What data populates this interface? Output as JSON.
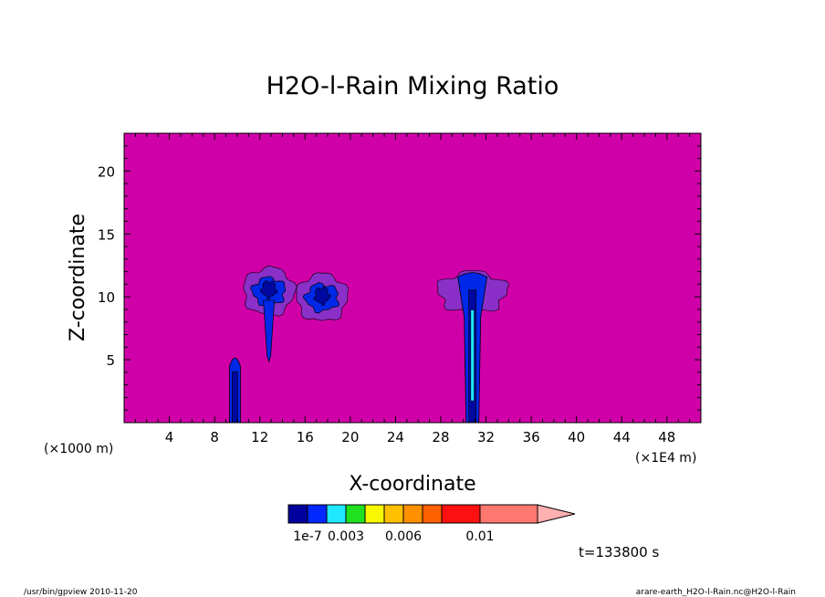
{
  "chart_data": {
    "type": "heatmap",
    "title": "H2O-l-Rain Mixing Ratio",
    "xlabel": "X-coordinate",
    "ylabel": "Z-coordinate",
    "x_ticks": [
      "4",
      "8",
      "12",
      "16",
      "20",
      "24",
      "28",
      "32",
      "36",
      "40",
      "44",
      "48"
    ],
    "y_ticks": [
      "5",
      "10",
      "15",
      "20"
    ],
    "x_unit_left": "(×1000 m)",
    "x_unit_right": "(×1E4 m)",
    "xlim": [
      0,
      51
    ],
    "ylim": [
      0,
      23
    ],
    "background_color": "#d000a8",
    "colorbar": {
      "colors": [
        "#00009c",
        "#0028ff",
        "#20e8ff",
        "#20e020",
        "#f8f800",
        "#ffc000",
        "#ff9000",
        "#ff6000",
        "#ff1010",
        "#ff7870"
      ],
      "extend_color": "#ffb0b0",
      "labels": [
        {
          "text": "1e-7",
          "boundary": 1
        },
        {
          "text": "0.003",
          "boundary": 3
        },
        {
          "text": "0.006",
          "boundary": 6
        },
        {
          "text": "0.01",
          "boundary": 9
        }
      ]
    },
    "features": [
      {
        "name": "shaft",
        "x": 9.8,
        "top": 5.5
      },
      {
        "name": "cloud",
        "x": 12.8,
        "z": 10.3,
        "base": 5.0
      },
      {
        "name": "cloud",
        "x": 17.5,
        "z": 9.8
      },
      {
        "name": "shaft",
        "x": 30.8,
        "top": 12.0
      }
    ]
  },
  "time_label": "t=133800 s",
  "footer_left": "/usr/bin/gpview  2010-11-20",
  "footer_right": "arare-earth_H2O-l-Rain.nc@H2O-l-Rain"
}
